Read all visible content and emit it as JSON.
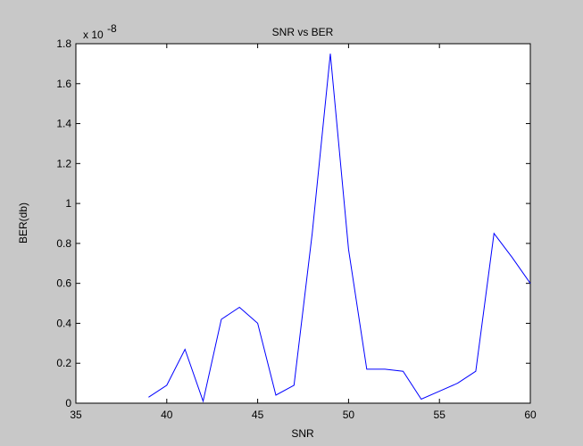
{
  "chart_data": {
    "type": "line",
    "title": "SNR vs BER",
    "xlabel": "SNR",
    "ylabel": "BER(db)",
    "y_exponent_label": "x 10",
    "y_exponent_power": "-8",
    "xlim": [
      35,
      60
    ],
    "ylim": [
      0,
      1.8
    ],
    "x_ticks": [
      "35",
      "40",
      "45",
      "50",
      "55",
      "60"
    ],
    "y_ticks": [
      "0",
      "0.2",
      "0.4",
      "0.6",
      "0.8",
      "1",
      "1.2",
      "1.4",
      "1.6",
      "1.8"
    ],
    "grid": false,
    "line_color": "#0000ff",
    "series": [
      {
        "x": [
          39,
          40,
          41,
          42,
          43,
          44,
          45,
          46,
          47,
          48,
          49,
          50,
          51,
          52,
          53,
          54,
          55,
          56,
          57,
          58,
          59,
          60
        ],
        "values": [
          0.03,
          0.09,
          0.27,
          0.01,
          0.42,
          0.48,
          0.4,
          0.04,
          0.09,
          0.85,
          1.75,
          0.77,
          0.17,
          0.17,
          0.16,
          0.02,
          0.06,
          0.1,
          0.16,
          0.85,
          0.73,
          0.6
        ]
      }
    ]
  }
}
